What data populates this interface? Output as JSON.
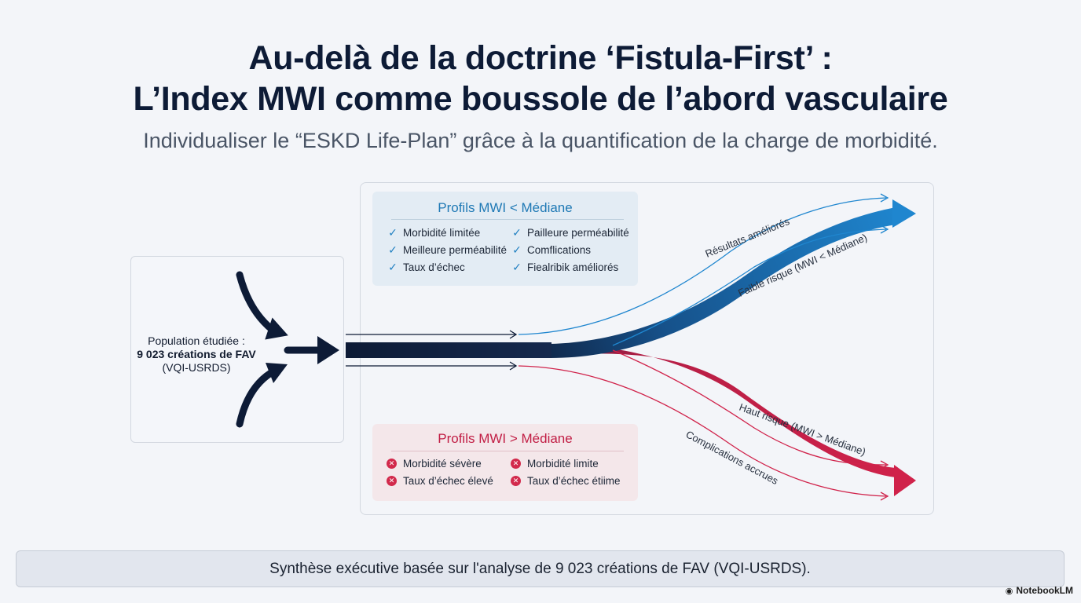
{
  "header": {
    "title_line1": "Au-delà de la doctrine ‘Fistula-First’ :",
    "title_line2": "L’Index MWI comme boussole de l’abord vasculaire",
    "subtitle": "Individualiser le “ESKD Life-Plan” grâce à la quantification de la charge de morbidité."
  },
  "population": {
    "line1": "Population étudiée :",
    "line2": "9 023 créations de FAV",
    "line3": "(VQI-USRDS)"
  },
  "low_profile": {
    "title": "Profils MWI < Médiane",
    "items": [
      "Morbidité limitée",
      "Pailleure perméabilité",
      "Meilleure perméabilité",
      "Comflications",
      "Taux d’échec",
      "Fiealribik améliorés"
    ],
    "icon": "check-icon",
    "color": "#1f7fc1"
  },
  "high_profile": {
    "title": "Profils MWI > Médiane",
    "items": [
      "Morbidité sévère",
      "Morbidité limite",
      "Taux d’échec élevé",
      "Taux d’échec étiime"
    ],
    "icon": "x-circle-icon",
    "color": "#d22a4c"
  },
  "flow_labels": {
    "upper_outer": "Résultats améliorés",
    "upper_inner": "Faible risque (MWI < Médiane)",
    "lower_inner": "Haut risque (MWI > Médiane)",
    "lower_outer": "Complications accrues"
  },
  "colors": {
    "navy": "#0d1b36",
    "blue": "#1f86cf",
    "red": "#d0224a"
  },
  "footer": {
    "text": "Synthèse exécutive basée sur l'analyse de 9 023 créations de FAV (VQI-USRDS)."
  },
  "brand": {
    "name": "NotebookLM"
  }
}
